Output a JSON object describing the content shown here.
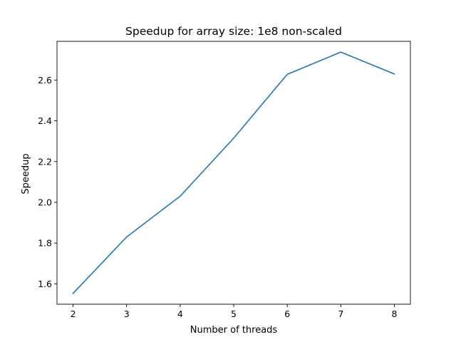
{
  "chart_data": {
    "type": "line",
    "title": "Speedup for array size: 1e8 non-scaled",
    "xlabel": "Number of threads",
    "ylabel": "Speedup",
    "x": [
      2,
      3,
      4,
      5,
      6,
      7,
      8
    ],
    "series": [
      {
        "values": [
          1.553,
          1.83,
          2.03,
          2.315,
          2.628,
          2.737,
          2.63
        ],
        "color": "#1f77b4"
      }
    ],
    "xlim": [
      1.7,
      8.3
    ],
    "ylim": [
      1.5,
      2.79
    ],
    "xticks": [
      2,
      3,
      4,
      5,
      6,
      7,
      8
    ],
    "xtick_labels": [
      "2",
      "3",
      "4",
      "5",
      "6",
      "7",
      "8"
    ],
    "yticks": [
      1.6,
      1.8,
      2.0,
      2.2,
      2.4,
      2.6
    ],
    "ytick_labels": [
      "1.6",
      "1.8",
      "2.0",
      "2.2",
      "2.4",
      "2.6"
    ],
    "grid": false,
    "legend": "none"
  }
}
